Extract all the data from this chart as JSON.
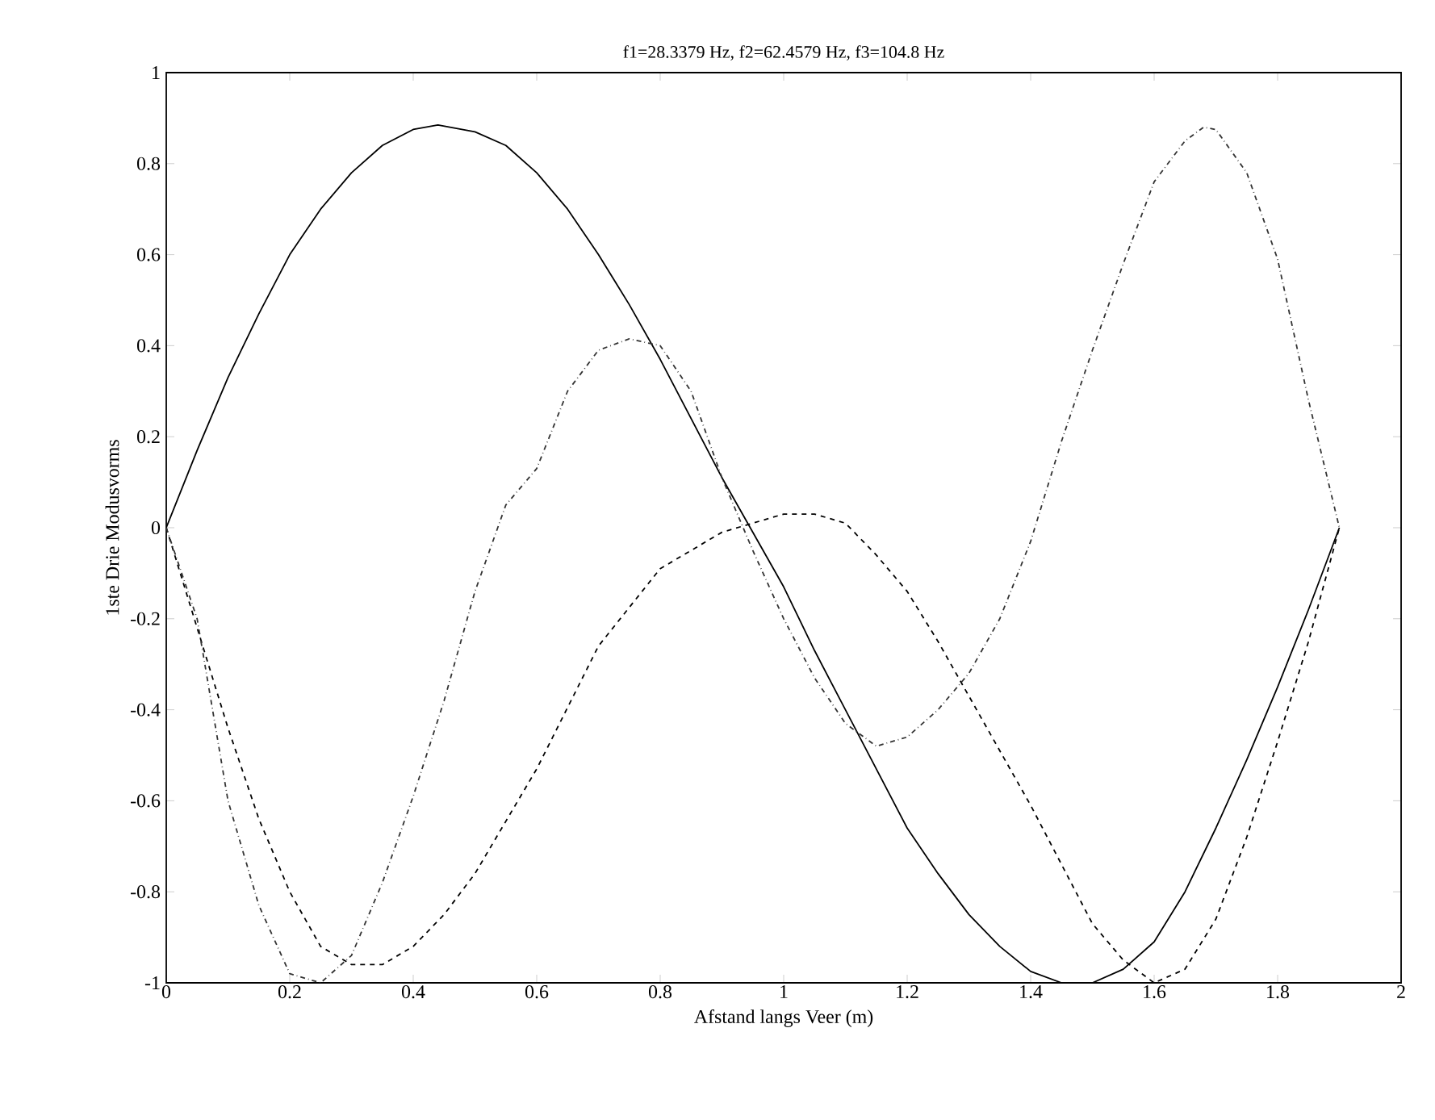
{
  "chart_data": {
    "type": "line",
    "title": "f1=28.3379 Hz, f2=62.4579 Hz, f3=104.8 Hz",
    "xlabel": "Afstand langs Veer (m)",
    "ylabel": "1ste Drie Modusvorms",
    "xlim": [
      0,
      2
    ],
    "ylim": [
      -1,
      1
    ],
    "xticks": [
      0,
      0.2,
      0.4,
      0.6,
      0.8,
      1,
      1.2,
      1.4,
      1.6,
      1.8,
      2
    ],
    "yticks": [
      -1,
      -0.8,
      -0.6,
      -0.4,
      -0.2,
      0,
      0.2,
      0.4,
      0.6,
      0.8,
      1
    ],
    "marker": "none",
    "series": [
      {
        "color": "#000000",
        "line_style": "solid",
        "x": [
          0,
          0.05,
          0.1,
          0.15,
          0.2,
          0.25,
          0.3,
          0.35,
          0.4,
          0.44,
          0.5,
          0.55,
          0.6,
          0.65,
          0.7,
          0.75,
          0.8,
          0.85,
          0.9,
          0.95,
          1.0,
          1.05,
          1.1,
          1.15,
          1.2,
          1.25,
          1.3,
          1.35,
          1.4,
          1.45,
          1.5,
          1.55,
          1.6,
          1.65,
          1.7,
          1.75,
          1.8,
          1.85,
          1.9
        ],
        "values": [
          0,
          0.17,
          0.33,
          0.47,
          0.6,
          0.7,
          0.78,
          0.84,
          0.875,
          0.885,
          0.87,
          0.84,
          0.78,
          0.7,
          0.6,
          0.49,
          0.37,
          0.24,
          0.11,
          -0.01,
          -0.13,
          -0.27,
          -0.4,
          -0.53,
          -0.66,
          -0.76,
          -0.85,
          -0.92,
          -0.975,
          -1.0,
          -1.0,
          -0.97,
          -0.91,
          -0.8,
          -0.66,
          -0.51,
          -0.35,
          -0.18,
          0
        ]
      },
      {
        "color": "#000000",
        "line_style": "dashed",
        "x": [
          0,
          0.05,
          0.1,
          0.15,
          0.2,
          0.25,
          0.3,
          0.35,
          0.4,
          0.45,
          0.5,
          0.6,
          0.7,
          0.8,
          0.9,
          0.95,
          1.0,
          1.05,
          1.1,
          1.15,
          1.2,
          1.25,
          1.3,
          1.35,
          1.4,
          1.45,
          1.5,
          1.55,
          1.6,
          1.65,
          1.7,
          1.75,
          1.8,
          1.85,
          1.9
        ],
        "values": [
          0,
          -0.22,
          -0.44,
          -0.64,
          -0.8,
          -0.92,
          -0.96,
          -0.96,
          -0.92,
          -0.85,
          -0.76,
          -0.53,
          -0.26,
          -0.09,
          -0.01,
          0.01,
          0.03,
          0.03,
          0.01,
          -0.06,
          -0.14,
          -0.25,
          -0.37,
          -0.49,
          -0.61,
          -0.74,
          -0.87,
          -0.95,
          -1.0,
          -0.97,
          -0.86,
          -0.68,
          -0.47,
          -0.25,
          0
        ]
      },
      {
        "color": "#333333",
        "line_style": "dotted",
        "x": [
          0,
          0.05,
          0.1,
          0.15,
          0.2,
          0.25,
          0.3,
          0.35,
          0.4,
          0.45,
          0.5,
          0.55,
          0.6,
          0.65,
          0.7,
          0.75,
          0.8,
          0.85,
          0.9,
          0.95,
          1.0,
          1.05,
          1.1,
          1.15,
          1.2,
          1.25,
          1.3,
          1.35,
          1.4,
          1.45,
          1.5,
          1.55,
          1.6,
          1.65,
          1.68,
          1.7,
          1.75,
          1.8,
          1.85,
          1.9
        ],
        "values": [
          0,
          -0.2,
          -0.6,
          -0.83,
          -0.98,
          -1.0,
          -0.94,
          -0.78,
          -0.59,
          -0.38,
          -0.14,
          0.05,
          0.13,
          0.3,
          0.39,
          0.415,
          0.4,
          0.3,
          0.11,
          -0.05,
          -0.2,
          -0.33,
          -0.43,
          -0.48,
          -0.46,
          -0.4,
          -0.32,
          -0.2,
          -0.03,
          0.19,
          0.39,
          0.58,
          0.76,
          0.85,
          0.88,
          0.875,
          0.78,
          0.59,
          0.28,
          0
        ]
      }
    ]
  }
}
